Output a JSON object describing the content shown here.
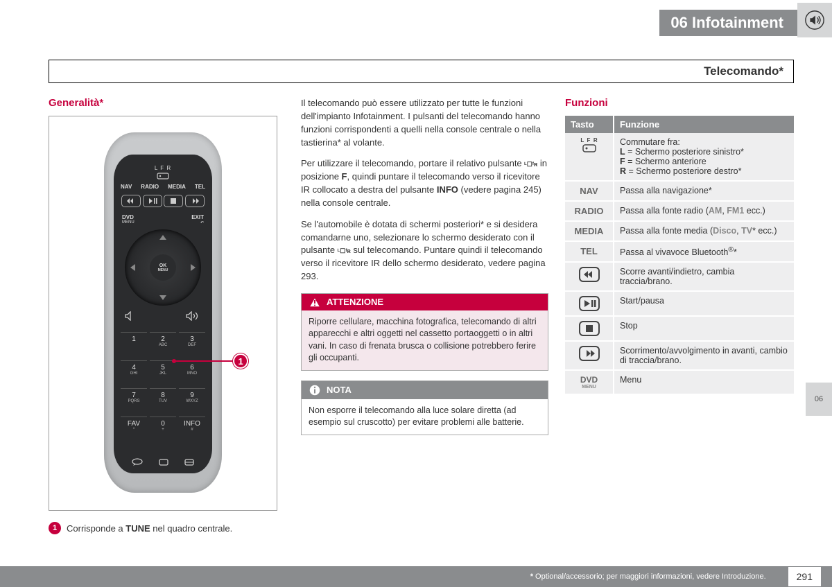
{
  "header": {
    "chapter": "06  Infotainment"
  },
  "section_title": "Telecomando*",
  "col1": {
    "heading": "Generalità*",
    "callout_number": "1",
    "legend": {
      "num": "1",
      "text_pre": "Corrisponde a ",
      "bold": "TUNE",
      "text_post": " nel quadro centrale."
    },
    "remote": {
      "lfr": "L  F  R",
      "nav_row": [
        "NAV",
        "RADIO",
        "MEDIA",
        "TEL"
      ],
      "dvd": "DVD",
      "dvd_sub": "MENU",
      "exit": "EXIT",
      "ok": "OK",
      "ok_sub": "MENU",
      "keys": [
        {
          "n": "1",
          "s": ""
        },
        {
          "n": "2",
          "s": "ABC"
        },
        {
          "n": "3",
          "s": "DEF"
        },
        {
          "n": "4",
          "s": "GHI"
        },
        {
          "n": "5",
          "s": "JKL"
        },
        {
          "n": "6",
          "s": "MNO"
        },
        {
          "n": "7",
          "s": "PQRS"
        },
        {
          "n": "8",
          "s": "TUV"
        },
        {
          "n": "9",
          "s": "WXYZ"
        },
        {
          "n": "FAV",
          "s": "*"
        },
        {
          "n": "0",
          "s": "+"
        },
        {
          "n": "INFO",
          "s": "#"
        }
      ]
    }
  },
  "col2": {
    "p1": "Il telecomando può essere utilizzato per tutte le funzioni dell'impianto Infotainment. I pulsanti del telecomando hanno funzioni corrispondenti a quelli nella console centrale o nella tastierina* al volante.",
    "p2_pre": "Per utilizzare il telecomando, portare il relativo pulsante ",
    "p2_mid": " in posizione ",
    "p2_f": "F",
    "p2_post1": ", quindi puntare il telecomando verso il ricevitore IR collocato a destra del pulsante ",
    "p2_info": "INFO",
    "p2_post2": " (vedere pagina 245) nella console centrale.",
    "p3_pre": "Se l'automobile è dotata di schermi posteriori* e si desidera comandarne uno, selezionare lo schermo desiderato con il pulsante ",
    "p3_post": " sul telecomando. Puntare quindi il telecomando verso il ricevitore IR dello schermo desiderato, vedere pagina 293.",
    "warn_title": "ATTENZIONE",
    "warn_body": "Riporre cellulare, macchina fotografica, telecomando di altri apparecchi e altri oggetti nel cassetto portaoggetti o in altri vani. In caso di frenata brusca o collisione potrebbero ferire gli occupanti.",
    "note_title": "NOTA",
    "note_body": "Non esporre il telecomando alla luce solare diretta (ad esempio sul cruscotto) per evitare problemi alle batterie."
  },
  "col3": {
    "heading": "Funzioni",
    "th1": "Tasto",
    "th2": "Funzione",
    "rows": [
      {
        "key_type": "lfr",
        "func_html": "Commutare fra:<br><b>L</b> = Schermo posteriore sinistro*<br><b>F</b> = Schermo anteriore<br><b>R</b> = Schermo posteriore destro*"
      },
      {
        "key_type": "text",
        "key": "NAV",
        "func_html": "Passa alla navigazione*"
      },
      {
        "key_type": "text",
        "key": "RADIO",
        "func_html": "Passa alla fonte radio (<span class='gray-em'>AM</span>, <span class='gray-em'>FM1</span> ecc.)"
      },
      {
        "key_type": "text",
        "key": "MEDIA",
        "func_html": "Passa alla fonte media (<span class='gray-em'>Disco</span>, <span class='gray-em'>TV</span>* ecc.)"
      },
      {
        "key_type": "text",
        "key": "TEL",
        "func_html": "Passa al vivavoce Bluetooth<sup>®</sup>*"
      },
      {
        "key_type": "icon",
        "icon": "rew",
        "func_html": "Scorre avanti/indietro, cambia traccia/brano."
      },
      {
        "key_type": "icon",
        "icon": "play",
        "func_html": "Start/pausa"
      },
      {
        "key_type": "icon",
        "icon": "stop",
        "func_html": "Stop"
      },
      {
        "key_type": "icon",
        "icon": "fwd",
        "func_html": "Scorrimento/avvolgimento in avanti, cambio di traccia/brano."
      },
      {
        "key_type": "dvd",
        "key": "DVD",
        "sub": "MENU",
        "func_html": "Menu"
      }
    ]
  },
  "side_tab": "06",
  "footer": {
    "note_star": "*",
    "note": " Optional/accessorio; per maggiori informazioni, vedere Introduzione.",
    "page": "291"
  },
  "colors": {
    "accent": "#c6003d",
    "gray": "#8a8c8e",
    "lightgray": "#d5d6d7",
    "row": "#eeeeef",
    "warn_bg": "#f4e7ec"
  }
}
